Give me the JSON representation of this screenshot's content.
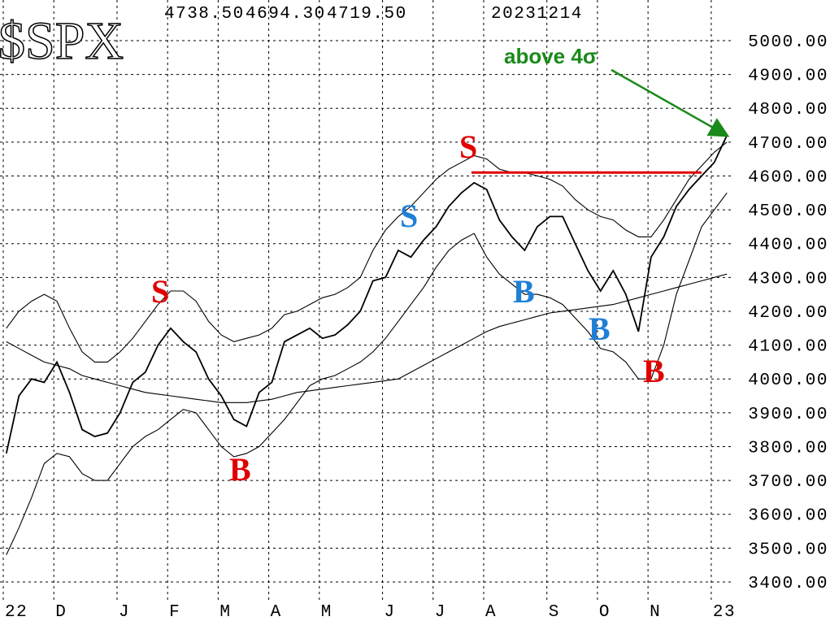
{
  "chart_data": {
    "type": "line",
    "title": "$SPX",
    "header_values": [
      "4738.50",
      "4694.30",
      "4719.50",
      "20231214"
    ],
    "categories": [
      "22",
      null,
      null,
      null,
      "D",
      null,
      null,
      null,
      null,
      "J",
      null,
      null,
      null,
      "F",
      null,
      null,
      null,
      "M",
      null,
      null,
      null,
      "A",
      null,
      null,
      null,
      "M",
      null,
      null,
      null,
      null,
      "J",
      null,
      null,
      null,
      "J",
      null,
      null,
      null,
      "A",
      null,
      null,
      null,
      null,
      "S",
      null,
      null,
      null,
      "O",
      null,
      null,
      null,
      "N",
      null,
      null,
      null,
      null,
      "23",
      null
    ],
    "series": [
      {
        "color": "#000000",
        "values": [
          3780,
          3950,
          4000,
          3990,
          4050,
          3960,
          3850,
          3830,
          3840,
          3900,
          3990,
          4020,
          4100,
          4150,
          4110,
          4080,
          4000,
          3950,
          3880,
          3860,
          3960,
          3990,
          4110,
          4130,
          4150,
          4120,
          4130,
          4160,
          4200,
          4290,
          4300,
          4380,
          4360,
          4410,
          4450,
          4510,
          4550,
          4580,
          4560,
          4470,
          4420,
          4380,
          4450,
          4480,
          4480,
          4400,
          4320,
          4260,
          4320,
          4250,
          4140,
          4360,
          4420,
          4510,
          4560,
          4600,
          4640,
          4720
        ]
      },
      {
        "color": "#000000",
        "values": [
          4150,
          4200,
          4230,
          4250,
          4230,
          4150,
          4080,
          4050,
          4050,
          4080,
          4120,
          4170,
          4220,
          4260,
          4260,
          4230,
          4170,
          4130,
          4110,
          4120,
          4130,
          4150,
          4190,
          4200,
          4220,
          4240,
          4250,
          4270,
          4300,
          4380,
          4440,
          4480,
          4510,
          4550,
          4590,
          4620,
          4640,
          4660,
          4650,
          4620,
          4610,
          4610,
          4600,
          4590,
          4570,
          4530,
          4500,
          4480,
          4470,
          4440,
          4420,
          4420,
          4470,
          4530,
          4590,
          4630,
          4670,
          4700
        ]
      },
      {
        "color": "#000000",
        "values": [
          3480,
          3560,
          3650,
          3750,
          3780,
          3770,
          3720,
          3700,
          3700,
          3750,
          3800,
          3830,
          3850,
          3880,
          3910,
          3900,
          3850,
          3800,
          3770,
          3780,
          3800,
          3840,
          3880,
          3930,
          3980,
          4000,
          4010,
          4030,
          4050,
          4080,
          4120,
          4170,
          4220,
          4270,
          4330,
          4380,
          4410,
          4430,
          4360,
          4310,
          4280,
          4250,
          4250,
          4240,
          4220,
          4180,
          4140,
          4090,
          4080,
          4050,
          4000,
          4000,
          4100,
          4250,
          4350,
          4450,
          4500,
          4550
        ]
      },
      {
        "color": "#000000",
        "values": [
          4110,
          4090,
          4070,
          4050,
          4040,
          4030,
          4010,
          4000,
          3990,
          3980,
          3970,
          3960,
          3955,
          3950,
          3945,
          3940,
          3935,
          3930,
          3930,
          3930,
          3935,
          3940,
          3950,
          3960,
          3965,
          3970,
          3975,
          3980,
          3985,
          3990,
          3995,
          4000,
          4020,
          4040,
          4060,
          4080,
          4100,
          4120,
          4140,
          4155,
          4165,
          4175,
          4185,
          4195,
          4200,
          4205,
          4210,
          4215,
          4220,
          4230,
          4240,
          4250,
          4260,
          4270,
          4280,
          4290,
          4300,
          4310
        ]
      }
    ],
    "ylim": [
      3347,
      5120
    ],
    "yticks": [
      {
        "value": 3400,
        "label": "3400.00"
      },
      {
        "value": 3500,
        "label": "3500.00"
      },
      {
        "value": 3600,
        "label": "3600.00"
      },
      {
        "value": 3700,
        "label": "3700.00"
      },
      {
        "value": 3800,
        "label": "3800.00"
      },
      {
        "value": 3900,
        "label": "3900.00"
      },
      {
        "value": 4000,
        "label": "4000.00"
      },
      {
        "value": 4100,
        "label": "4100.00"
      },
      {
        "value": 4200,
        "label": "4200.00"
      },
      {
        "value": 4300,
        "label": "4300.00"
      },
      {
        "value": 4400,
        "label": "4400.00"
      },
      {
        "value": 4500,
        "label": "4500.00"
      },
      {
        "value": 4600,
        "label": "4600.00"
      },
      {
        "value": 4700,
        "label": "4700.00"
      },
      {
        "value": 4800,
        "label": "4800.00"
      },
      {
        "value": 4900,
        "label": "4900.00"
      },
      {
        "value": 5000,
        "label": "5000.00"
      }
    ],
    "grid": true,
    "hline": {
      "value": 4610,
      "color": "#e00000"
    },
    "annotations": [
      {
        "text": "S",
        "color": "#e00000"
      },
      {
        "text": "S",
        "color": "#1e7fd6"
      },
      {
        "text": "S",
        "color": "#e00000"
      },
      {
        "text": "B",
        "color": "#e00000"
      },
      {
        "text": "B",
        "color": "#1e7fd6"
      },
      {
        "text": "B",
        "color": "#1e7fd6"
      },
      {
        "text": "B",
        "color": "#e00000"
      },
      {
        "text": "above 4σ",
        "color": "#1a8a1a"
      }
    ]
  }
}
